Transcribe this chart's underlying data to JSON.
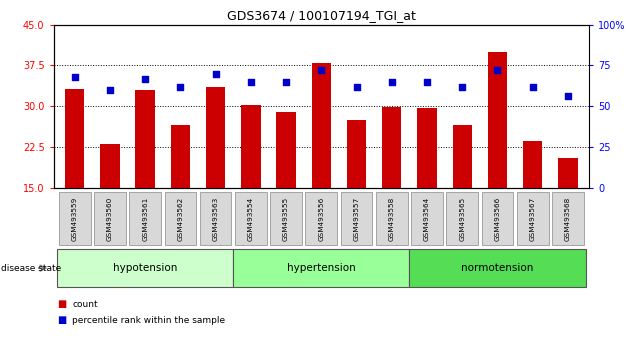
{
  "title": "GDS3674 / 100107194_TGI_at",
  "samples": [
    "GSM493559",
    "GSM493560",
    "GSM493561",
    "GSM493562",
    "GSM493563",
    "GSM493554",
    "GSM493555",
    "GSM493556",
    "GSM493557",
    "GSM493558",
    "GSM493564",
    "GSM493565",
    "GSM493566",
    "GSM493567",
    "GSM493568"
  ],
  "bar_values": [
    33.2,
    23.0,
    33.0,
    26.5,
    33.5,
    30.3,
    29.0,
    38.0,
    27.5,
    29.8,
    29.6,
    26.5,
    40.0,
    23.5,
    20.5
  ],
  "dot_values_pct": [
    68,
    60,
    67,
    62,
    70,
    65,
    65,
    72,
    62,
    65,
    65,
    62,
    72,
    62,
    56
  ],
  "groups": [
    {
      "label": "hypotension",
      "start": 0,
      "end": 5,
      "color": "#ccffcc"
    },
    {
      "label": "hypertension",
      "start": 5,
      "end": 10,
      "color": "#99ff99"
    },
    {
      "label": "normotension",
      "start": 10,
      "end": 15,
      "color": "#55dd55"
    }
  ],
  "ylim_left": [
    15,
    45
  ],
  "ylim_right": [
    0,
    100
  ],
  "yticks_left": [
    15,
    22.5,
    30,
    37.5,
    45
  ],
  "yticks_right": [
    0,
    25,
    50,
    75,
    100
  ],
  "bar_color": "#cc0000",
  "dot_color": "#0000cc",
  "grid_values": [
    22.5,
    30.0,
    37.5
  ],
  "disease_state_label": "disease state",
  "legend_count": "count",
  "legend_pct": "percentile rank within the sample"
}
